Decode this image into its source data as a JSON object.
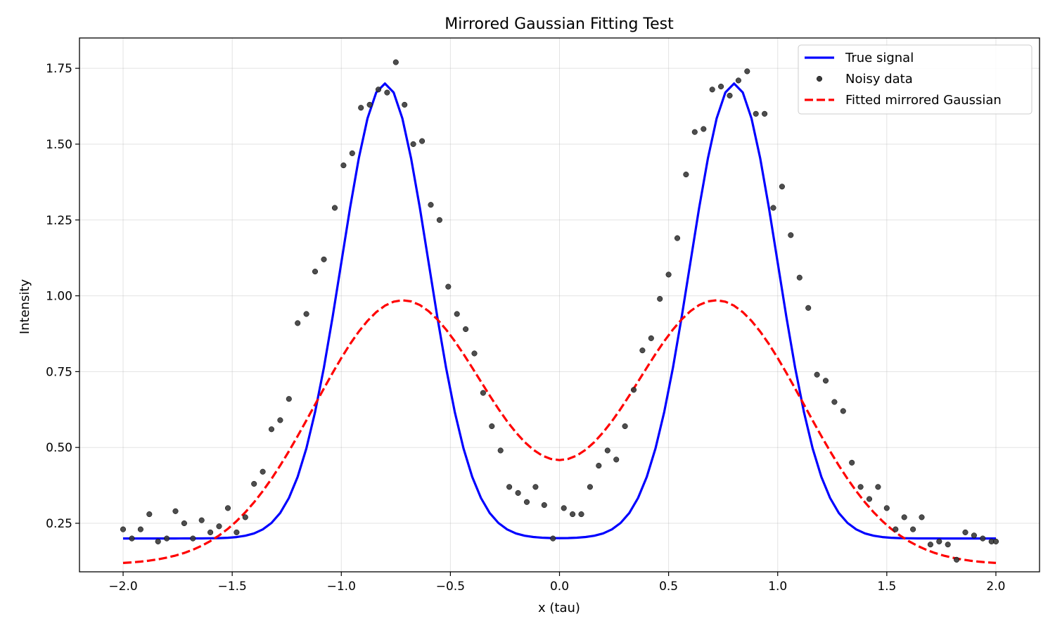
{
  "chart_data": {
    "type": "line",
    "title": "Mirrored Gaussian Fitting Test",
    "xlabel": "x (tau)",
    "ylabel": "Intensity",
    "xlim": [
      -2.2,
      2.2
    ],
    "ylim": [
      0.09,
      1.85
    ],
    "xticks": [
      -2.0,
      -1.5,
      -1.0,
      -0.5,
      0.0,
      0.5,
      1.0,
      1.5,
      2.0
    ],
    "xtick_labels": [
      "−2.0",
      "−1.5",
      "−1.0",
      "−0.5",
      "0.0",
      "0.5",
      "1.0",
      "1.5",
      "2.0"
    ],
    "yticks": [
      0.25,
      0.5,
      0.75,
      1.0,
      1.25,
      1.5,
      1.75
    ],
    "ytick_labels": [
      "0.25",
      "0.50",
      "0.75",
      "1.00",
      "1.25",
      "1.50",
      "1.75"
    ],
    "grid": true,
    "legend_position": "top-right",
    "series": [
      {
        "name": "True signal",
        "kind": "line",
        "color": "#0000ff",
        "style": "solid",
        "model": {
          "baseline": 0.2,
          "amplitude": 1.5,
          "center": 0.8,
          "sigma": 0.2
        },
        "x_range": [
          -2.0,
          2.0
        ]
      },
      {
        "name": "Noisy data",
        "kind": "scatter",
        "color": "#3a3a3a",
        "x": [
          -2.0,
          -1.96,
          -1.92,
          -1.88,
          -1.84,
          -1.8,
          -1.76,
          -1.72,
          -1.68,
          -1.64,
          -1.6,
          -1.56,
          -1.52,
          -1.48,
          -1.44,
          -1.4,
          -1.36,
          -1.32,
          -1.28,
          -1.24,
          -1.2,
          -1.16,
          -1.12,
          -1.08,
          -1.03,
          -0.99,
          -0.95,
          -0.91,
          -0.87,
          -0.83,
          -0.79,
          -0.75,
          -0.71,
          -0.67,
          -0.63,
          -0.59,
          -0.55,
          -0.51,
          -0.47,
          -0.43,
          -0.39,
          -0.35,
          -0.31,
          -0.27,
          -0.23,
          -0.19,
          -0.15,
          -0.11,
          -0.07,
          -0.03,
          0.02,
          0.06,
          0.1,
          0.14,
          0.18,
          0.22,
          0.26,
          0.3,
          0.34,
          0.38,
          0.42,
          0.46,
          0.5,
          0.54,
          0.58,
          0.62,
          0.66,
          0.7,
          0.74,
          0.78,
          0.82,
          0.86,
          0.9,
          0.94,
          0.98,
          1.02,
          1.06,
          1.1,
          1.14,
          1.18,
          1.22,
          1.26,
          1.3,
          1.34,
          1.38,
          1.42,
          1.46,
          1.5,
          1.54,
          1.58,
          1.62,
          1.66,
          1.7,
          1.74,
          1.78,
          1.82,
          1.86,
          1.9,
          1.94,
          1.98,
          2.0
        ],
        "y": [
          0.23,
          0.2,
          0.23,
          0.28,
          0.19,
          0.2,
          0.29,
          0.25,
          0.2,
          0.26,
          0.22,
          0.24,
          0.3,
          0.22,
          0.27,
          0.38,
          0.42,
          0.56,
          0.59,
          0.66,
          0.91,
          0.94,
          1.08,
          1.12,
          1.29,
          1.43,
          1.47,
          1.62,
          1.63,
          1.68,
          1.67,
          1.77,
          1.63,
          1.5,
          1.51,
          1.3,
          1.25,
          1.03,
          0.94,
          0.89,
          0.81,
          0.68,
          0.57,
          0.49,
          0.37,
          0.35,
          0.32,
          0.37,
          0.31,
          0.2,
          0.3,
          0.28,
          0.28,
          0.37,
          0.44,
          0.49,
          0.46,
          0.57,
          0.69,
          0.82,
          0.86,
          0.99,
          1.07,
          1.19,
          1.4,
          1.54,
          1.55,
          1.68,
          1.69,
          1.66,
          1.71,
          1.74,
          1.6,
          1.6,
          1.29,
          1.36,
          1.2,
          1.06,
          0.96,
          0.74,
          0.72,
          0.65,
          0.62,
          0.45,
          0.37,
          0.33,
          0.37,
          0.3,
          0.23,
          0.27,
          0.23,
          0.27,
          0.18,
          0.19,
          0.18,
          0.13,
          0.22,
          0.21,
          0.2,
          0.19,
          0.19
        ]
      },
      {
        "name": "Fitted mirrored Gaussian",
        "kind": "line",
        "color": "#ff0000",
        "style": "dashed",
        "model": {
          "baseline": 0.114,
          "amplitude": 0.87,
          "center": 0.72,
          "sigma": 0.4
        },
        "x_range": [
          -2.0,
          2.0
        ]
      }
    ]
  }
}
